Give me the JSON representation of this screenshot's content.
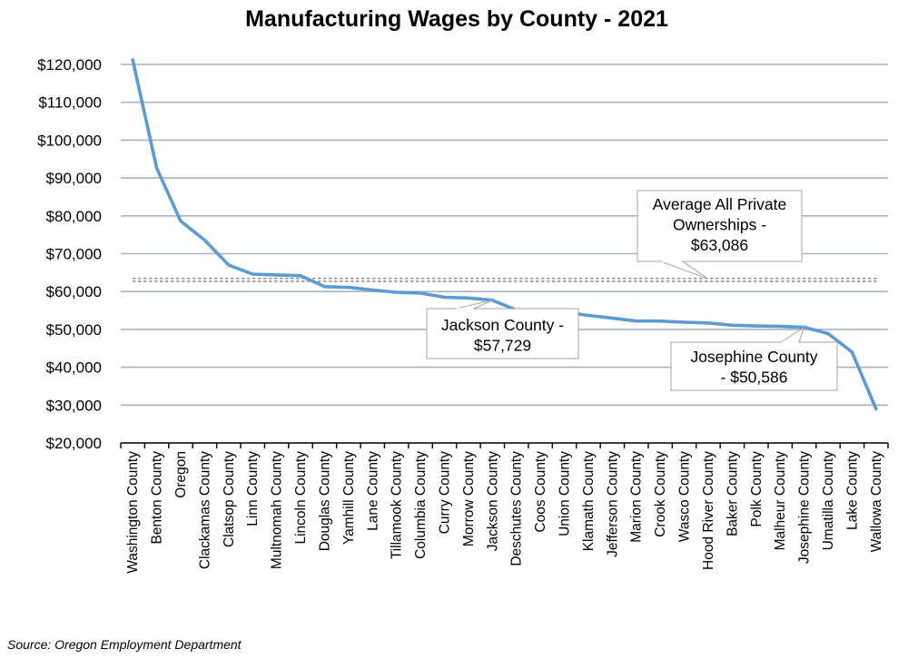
{
  "chart_data": {
    "type": "line",
    "title": "Manufacturing Wages by County - 2021",
    "xlabel": "",
    "ylabel": "",
    "ylim": [
      20000,
      120000
    ],
    "y_ticks": [
      20000,
      30000,
      40000,
      50000,
      60000,
      70000,
      80000,
      90000,
      100000,
      110000,
      120000
    ],
    "y_tick_labels": [
      "$20,000",
      "$30,000",
      "$40,000",
      "$50,000",
      "$60,000",
      "$70,000",
      "$80,000",
      "$90,000",
      "$100,000",
      "$110,000",
      "$120,000"
    ],
    "grid": true,
    "categories": [
      "Washington County",
      "Benton County",
      "Oregon",
      "Clackamas County",
      "Clatsop County",
      "Linn County",
      "Multnomah County",
      "Lincoln County",
      "Douglas County",
      "Yamhill County",
      "Lane County",
      "Tillamook County",
      "Columbia County",
      "Curry County",
      "Morrow County",
      "Jackson County",
      "Deschutes County",
      "Coos County",
      "Union County",
      "Klamath County",
      "Jefferson County",
      "Marion County",
      "Crook County",
      "Wasco County",
      "Hood River County",
      "Baker County",
      "Polk County",
      "Malheur County",
      "Josephine County",
      "Umatilla County",
      "Lake County",
      "Wallowa County"
    ],
    "series": [
      {
        "name": "Manufacturing Wages",
        "color": "#5B9BD5",
        "values": [
          121200,
          92600,
          78600,
          73600,
          67000,
          64600,
          64400,
          64200,
          61300,
          61100,
          60400,
          59800,
          59600,
          58500,
          58300,
          57729,
          55100,
          54900,
          54600,
          53700,
          53000,
          52200,
          52200,
          51900,
          51700,
          51100,
          50900,
          50800,
          50586,
          48900,
          44000,
          29000
        ]
      }
    ],
    "reference_lines": [
      {
        "name": "Average All Private Ownerships",
        "value": 63086,
        "color": "#7F7F7F",
        "style": "dashed"
      }
    ],
    "annotations": [
      {
        "lines": [
          "Average All Private",
          "Ownerships -",
          "$63,086"
        ]
      },
      {
        "lines": [
          "Jackson County -",
          "$57,729"
        ]
      },
      {
        "lines": [
          "Josephine County",
          "- $50,586"
        ]
      }
    ],
    "source": "Source: Oregon Employment Department"
  }
}
